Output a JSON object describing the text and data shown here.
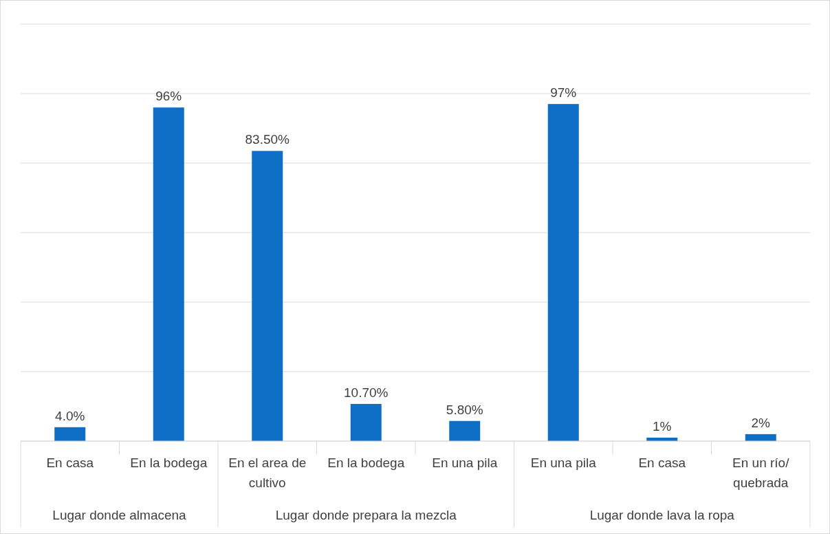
{
  "chart_data": {
    "type": "bar",
    "categories": [
      "En casa",
      "En la bodega",
      "En el area de cultivo",
      "En la bodega",
      "En una pila",
      "En una pila",
      "En casa",
      "En un río/ quebrada"
    ],
    "values": [
      4,
      96,
      83.5,
      10.7,
      5.8,
      97,
      1,
      2
    ],
    "value_labels": [
      "4.0%",
      "96%",
      "83.50%",
      "10.70%",
      "5.80%",
      "97%",
      "1%",
      "2%"
    ],
    "color": "#0f6fc6",
    "ylim": [
      0,
      120
    ],
    "yticks": [
      {
        "value": 0,
        "label": null
      },
      {
        "value": 20,
        "label": null
      },
      {
        "value": 40,
        "label": null
      },
      {
        "value": 60,
        "label": null
      },
      {
        "value": 80,
        "label": null
      },
      {
        "value": 100,
        "label": null
      },
      {
        "value": 120,
        "label": null
      }
    ],
    "grid": "y",
    "tick_labels": "x",
    "annotations": [
      "Lugar donde almacena",
      "Lugar donde prepara la mezcla",
      "Lugar donde lava la ropa"
    ]
  }
}
